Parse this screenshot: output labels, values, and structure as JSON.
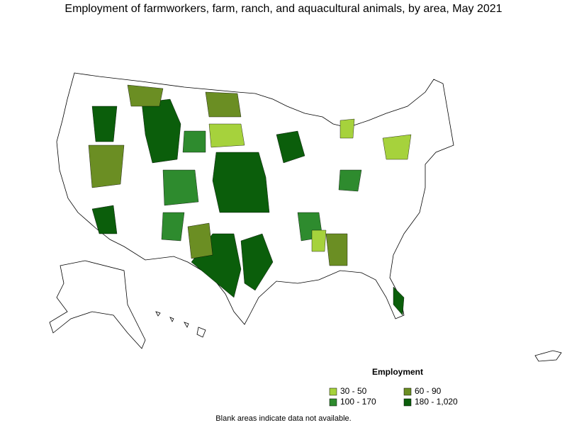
{
  "title": "Employment of farmworkers, farm, ranch, and aquacultural animals, by area, May 2021",
  "legend": {
    "title": "Employment",
    "items": [
      {
        "label": "30 - 50",
        "color": "#a6d23c"
      },
      {
        "label": "60 - 90",
        "color": "#6b8e23"
      },
      {
        "label": "100 - 170",
        "color": "#2e8b2e"
      },
      {
        "label": "180 - 1,020",
        "color": "#0b5e0b"
      }
    ]
  },
  "note": "Blank areas indicate data not available."
}
